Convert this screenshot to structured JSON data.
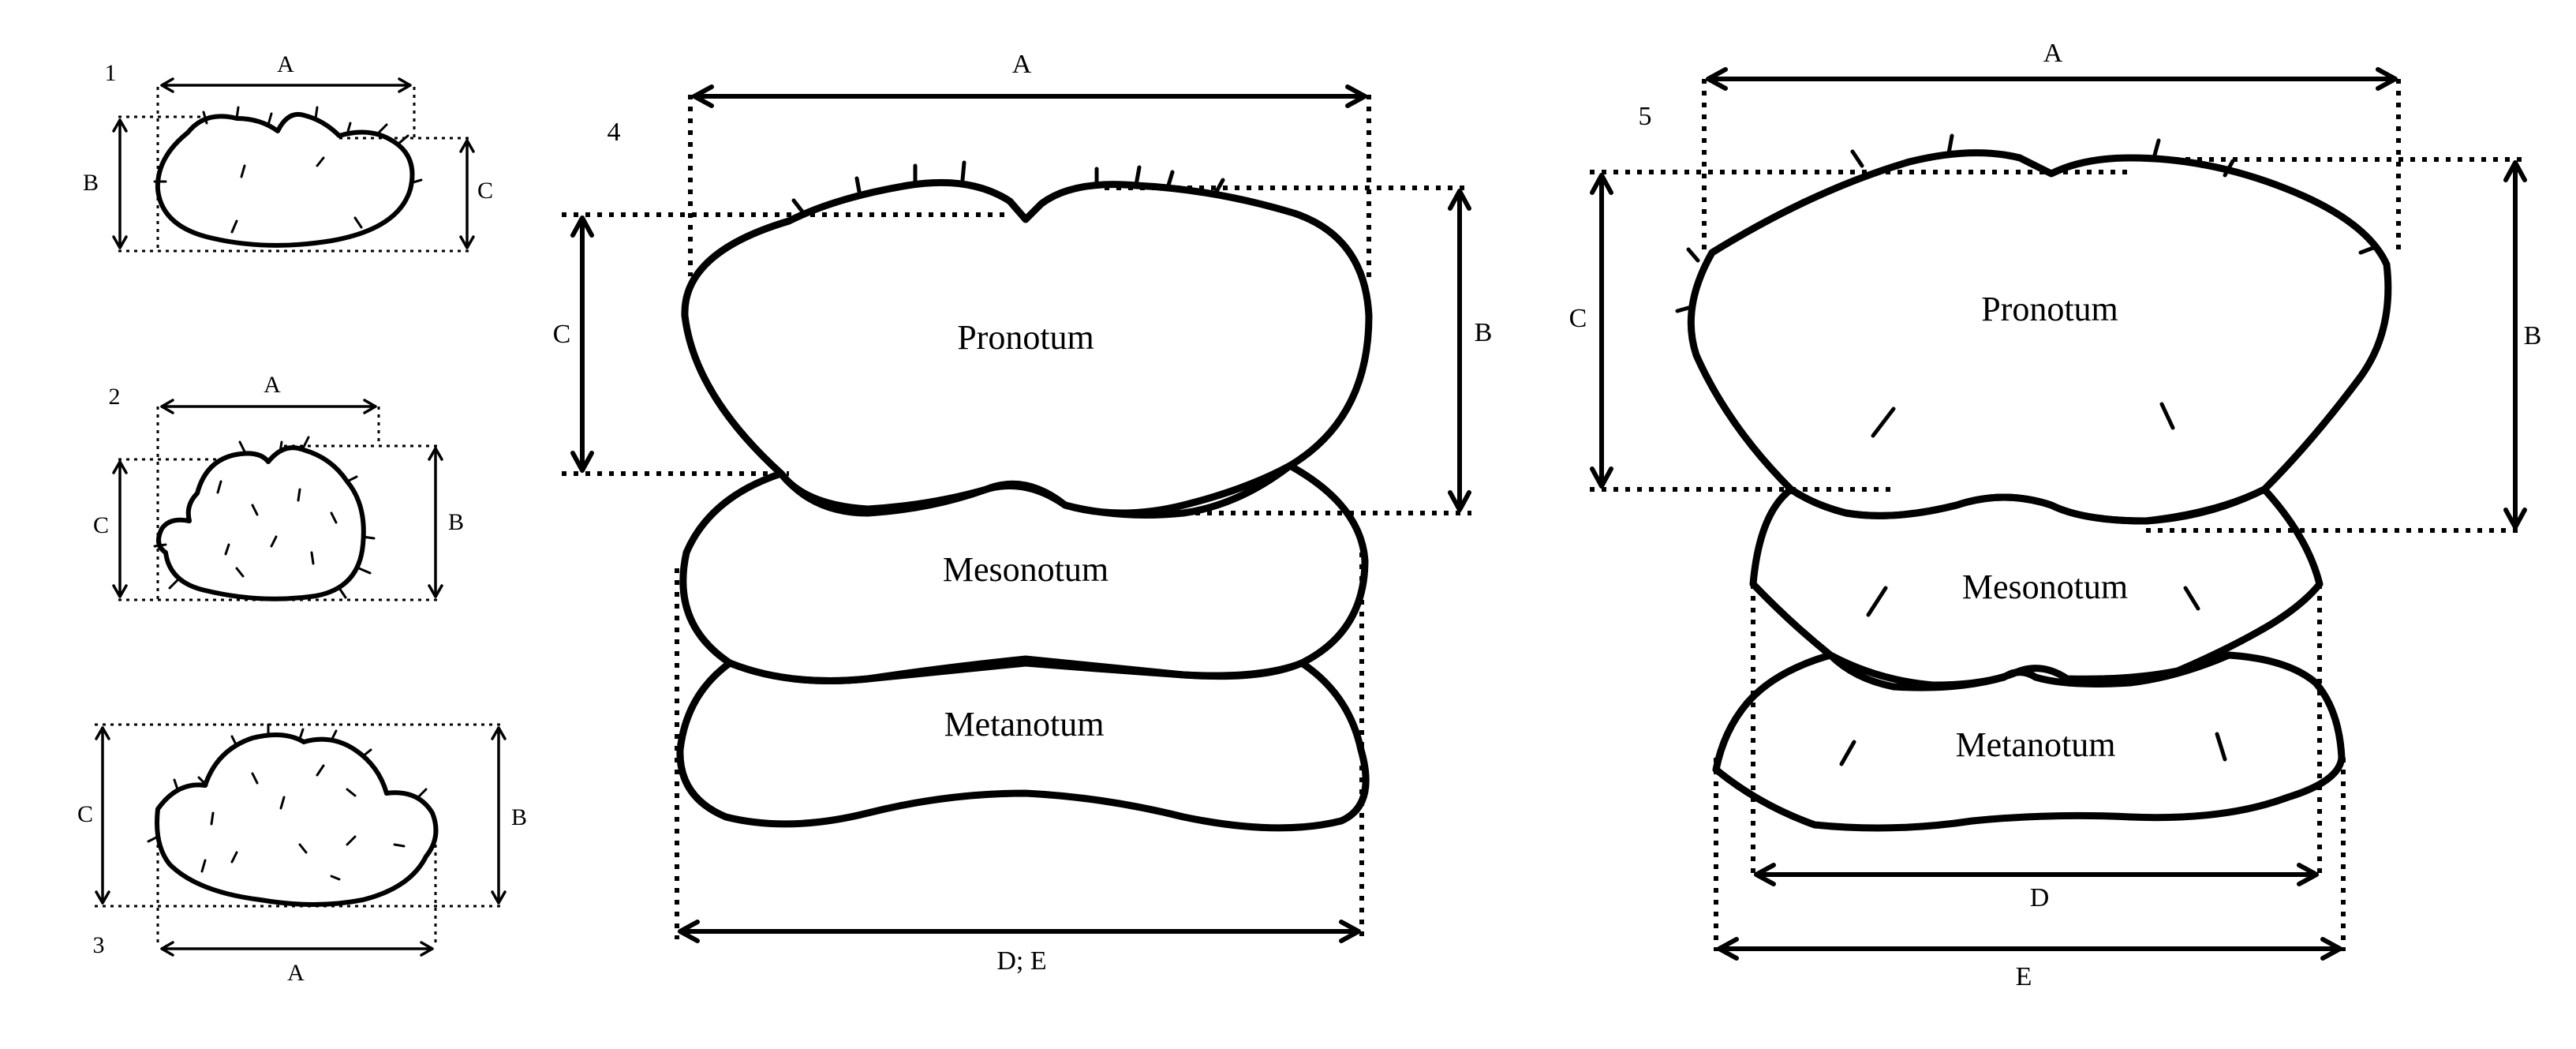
{
  "figures": {
    "f1": {
      "number": "1",
      "dim_a": "A",
      "dim_b": "B",
      "dim_c": "C"
    },
    "f2": {
      "number": "2",
      "dim_a": "A",
      "dim_b": "B",
      "dim_c": "C"
    },
    "f3": {
      "number": "3",
      "dim_a": "A",
      "dim_b": "B",
      "dim_c": "C"
    },
    "f4": {
      "number": "4",
      "dim_a": "A",
      "dim_b": "B",
      "dim_c": "C",
      "dim_de": "D; E",
      "pronotum": "Pronotum",
      "mesonotum": "Mesonotum",
      "metanotum": "Metanotum"
    },
    "f5": {
      "number": "5",
      "dim_a": "A",
      "dim_b": "B",
      "dim_c": "C",
      "dim_d": "D",
      "dim_e": "E",
      "pronotum": "Pronotum",
      "mesonotum": "Mesonotum",
      "metanotum": "Metanotum"
    }
  }
}
